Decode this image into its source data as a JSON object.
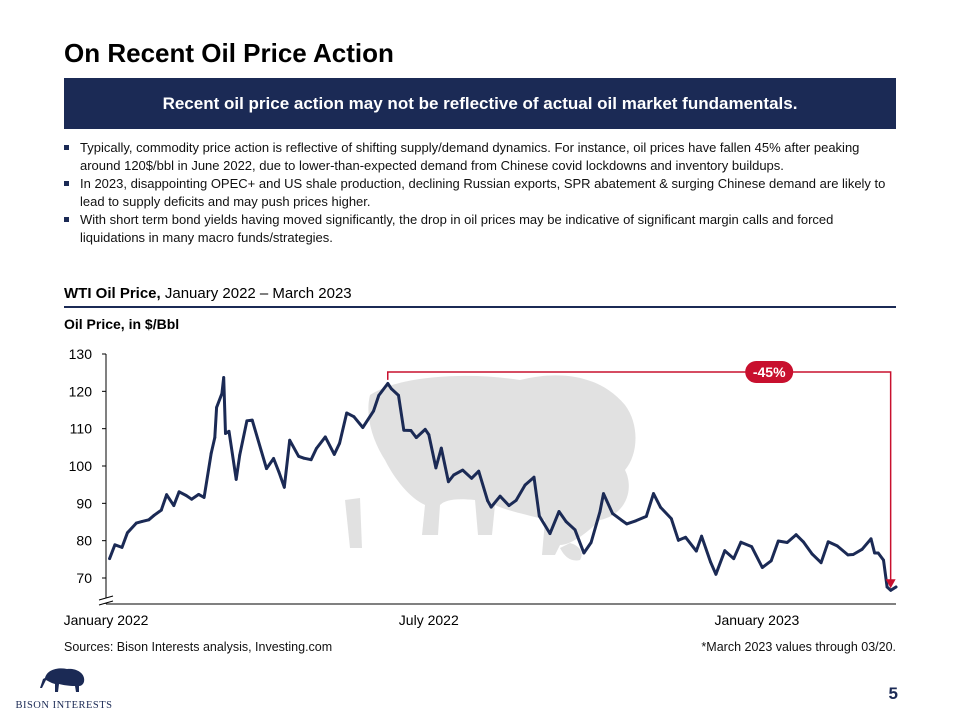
{
  "title": "On Recent Oil Price Action",
  "banner": "Recent oil price action may not be reflective of actual oil market fundamentals.",
  "bullets": [
    "Typically, commodity price action is reflective of shifting supply/demand dynamics. For instance, oil prices have fallen 45% after peaking around 120$/bbl in June 2022, due to lower-than-expected demand from Chinese covid lockdowns and inventory buildups.",
    "In 2023, disappointing OPEC+ and US shale production, declining Russian exports, SPR abatement & surging Chinese demand are likely to lead to supply deficits and may push prices higher.",
    "With short term bond yields having moved significantly, the drop in oil prices may be indicative of significant margin calls and forced liquidations in many macro funds/strategies."
  ],
  "chart_heading": {
    "bold": "WTI Oil Price,",
    "rest": " January 2022 – March 2023"
  },
  "chart_data": {
    "type": "line",
    "title": "WTI Oil Price, January 2022 – March 2023",
    "ylabel": "Oil Price, in $/Bbl",
    "yticks": [
      70,
      80,
      90,
      100,
      110,
      120,
      130
    ],
    "ylim": [
      70,
      130
    ],
    "xlim": [
      "2022-01-01",
      "2023-03-20"
    ],
    "xtick_labels": [
      "January 2022",
      "July 2022",
      "January 2023"
    ],
    "xtick_dates": [
      "2022-01-01",
      "2022-07-01",
      "2023-01-01"
    ],
    "y_axis_break": true,
    "series_color": "#1b2a55",
    "annotation": {
      "label": "-45%",
      "from_date": "2022-06-08",
      "to_date": "2023-03-17",
      "from_value": 122,
      "to_value": 67,
      "color": "#c8102e"
    },
    "series": [
      {
        "points": [
          [
            "2022-01-03",
            75.2
          ],
          [
            "2022-01-06",
            78.9
          ],
          [
            "2022-01-10",
            78.2
          ],
          [
            "2022-01-13",
            82.1
          ],
          [
            "2022-01-18",
            84.7
          ],
          [
            "2022-01-21",
            85.1
          ],
          [
            "2022-01-25",
            85.6
          ],
          [
            "2022-01-28",
            86.8
          ],
          [
            "2022-02-01",
            88.2
          ],
          [
            "2022-02-04",
            92.3
          ],
          [
            "2022-02-08",
            89.4
          ],
          [
            "2022-02-11",
            93.1
          ],
          [
            "2022-02-15",
            92.1
          ],
          [
            "2022-02-18",
            91.1
          ],
          [
            "2022-02-22",
            92.4
          ],
          [
            "2022-02-25",
            91.6
          ],
          [
            "2022-03-01",
            103.4
          ],
          [
            "2022-03-03",
            107.6
          ],
          [
            "2022-03-04",
            115.7
          ],
          [
            "2022-03-07",
            119.4
          ],
          [
            "2022-03-08",
            123.7
          ],
          [
            "2022-03-09",
            108.7
          ],
          [
            "2022-03-11",
            109.3
          ],
          [
            "2022-03-15",
            96.4
          ],
          [
            "2022-03-17",
            102.9
          ],
          [
            "2022-03-21",
            112.1
          ],
          [
            "2022-03-24",
            112.3
          ],
          [
            "2022-03-29",
            104.2
          ],
          [
            "2022-04-01",
            99.3
          ],
          [
            "2022-04-05",
            102.0
          ],
          [
            "2022-04-08",
            98.3
          ],
          [
            "2022-04-11",
            94.3
          ],
          [
            "2022-04-14",
            106.9
          ],
          [
            "2022-04-19",
            102.6
          ],
          [
            "2022-04-22",
            102.1
          ],
          [
            "2022-04-26",
            101.7
          ],
          [
            "2022-04-29",
            104.7
          ],
          [
            "2022-05-04",
            107.8
          ],
          [
            "2022-05-09",
            103.1
          ],
          [
            "2022-05-12",
            106.1
          ],
          [
            "2022-05-16",
            114.2
          ],
          [
            "2022-05-20",
            113.2
          ],
          [
            "2022-05-25",
            110.3
          ],
          [
            "2022-05-31",
            114.7
          ],
          [
            "2022-06-03",
            118.9
          ],
          [
            "2022-06-08",
            122.1
          ],
          [
            "2022-06-10",
            120.7
          ],
          [
            "2022-06-14",
            118.9
          ],
          [
            "2022-06-17",
            109.6
          ],
          [
            "2022-06-21",
            109.5
          ],
          [
            "2022-06-24",
            107.6
          ],
          [
            "2022-06-29",
            109.8
          ],
          [
            "2022-07-01",
            108.4
          ],
          [
            "2022-07-05",
            99.5
          ],
          [
            "2022-07-08",
            104.8
          ],
          [
            "2022-07-12",
            95.8
          ],
          [
            "2022-07-15",
            97.6
          ],
          [
            "2022-07-20",
            98.9
          ],
          [
            "2022-07-25",
            96.7
          ],
          [
            "2022-07-29",
            98.6
          ],
          [
            "2022-08-03",
            90.7
          ],
          [
            "2022-08-05",
            89.0
          ],
          [
            "2022-08-10",
            91.9
          ],
          [
            "2022-08-15",
            89.4
          ],
          [
            "2022-08-19",
            90.8
          ],
          [
            "2022-08-24",
            94.9
          ],
          [
            "2022-08-29",
            97.0
          ],
          [
            "2022-09-01",
            86.6
          ],
          [
            "2022-09-07",
            81.9
          ],
          [
            "2022-09-12",
            87.8
          ],
          [
            "2022-09-16",
            85.1
          ],
          [
            "2022-09-21",
            82.9
          ],
          [
            "2022-09-26",
            76.7
          ],
          [
            "2022-09-30",
            79.5
          ],
          [
            "2022-10-05",
            87.8
          ],
          [
            "2022-10-07",
            92.6
          ],
          [
            "2022-10-12",
            87.3
          ],
          [
            "2022-10-17",
            85.5
          ],
          [
            "2022-10-20",
            84.5
          ],
          [
            "2022-10-25",
            85.3
          ],
          [
            "2022-10-31",
            86.5
          ],
          [
            "2022-11-04",
            92.6
          ],
          [
            "2022-11-08",
            88.9
          ],
          [
            "2022-11-14",
            85.9
          ],
          [
            "2022-11-18",
            80.1
          ],
          [
            "2022-11-22",
            80.9
          ],
          [
            "2022-11-28",
            77.2
          ],
          [
            "2022-12-01",
            81.2
          ],
          [
            "2022-12-06",
            74.3
          ],
          [
            "2022-12-09",
            71.0
          ],
          [
            "2022-12-14",
            77.3
          ],
          [
            "2022-12-19",
            75.2
          ],
          [
            "2022-12-23",
            79.6
          ],
          [
            "2022-12-29",
            78.4
          ],
          [
            "2023-01-04",
            72.8
          ],
          [
            "2023-01-09",
            74.6
          ],
          [
            "2023-01-13",
            79.9
          ],
          [
            "2023-01-18",
            79.5
          ],
          [
            "2023-01-23",
            81.6
          ],
          [
            "2023-01-27",
            79.7
          ],
          [
            "2023-02-01",
            76.4
          ],
          [
            "2023-02-06",
            74.1
          ],
          [
            "2023-02-10",
            79.7
          ],
          [
            "2023-02-15",
            78.6
          ],
          [
            "2023-02-21",
            76.2
          ],
          [
            "2023-02-24",
            76.3
          ],
          [
            "2023-03-01",
            77.7
          ],
          [
            "2023-03-06",
            80.5
          ],
          [
            "2023-03-08",
            76.7
          ],
          [
            "2023-03-10",
            76.7
          ],
          [
            "2023-03-13",
            74.8
          ],
          [
            "2023-03-15",
            67.6
          ],
          [
            "2023-03-17",
            66.7
          ],
          [
            "2023-03-20",
            67.6
          ]
        ]
      }
    ]
  },
  "sources": "Sources: Bison Interests analysis, Investing.com",
  "note": "*March 2023 values through 03/20.",
  "logo_text": "BISON INTERESTS",
  "page_number": "5"
}
